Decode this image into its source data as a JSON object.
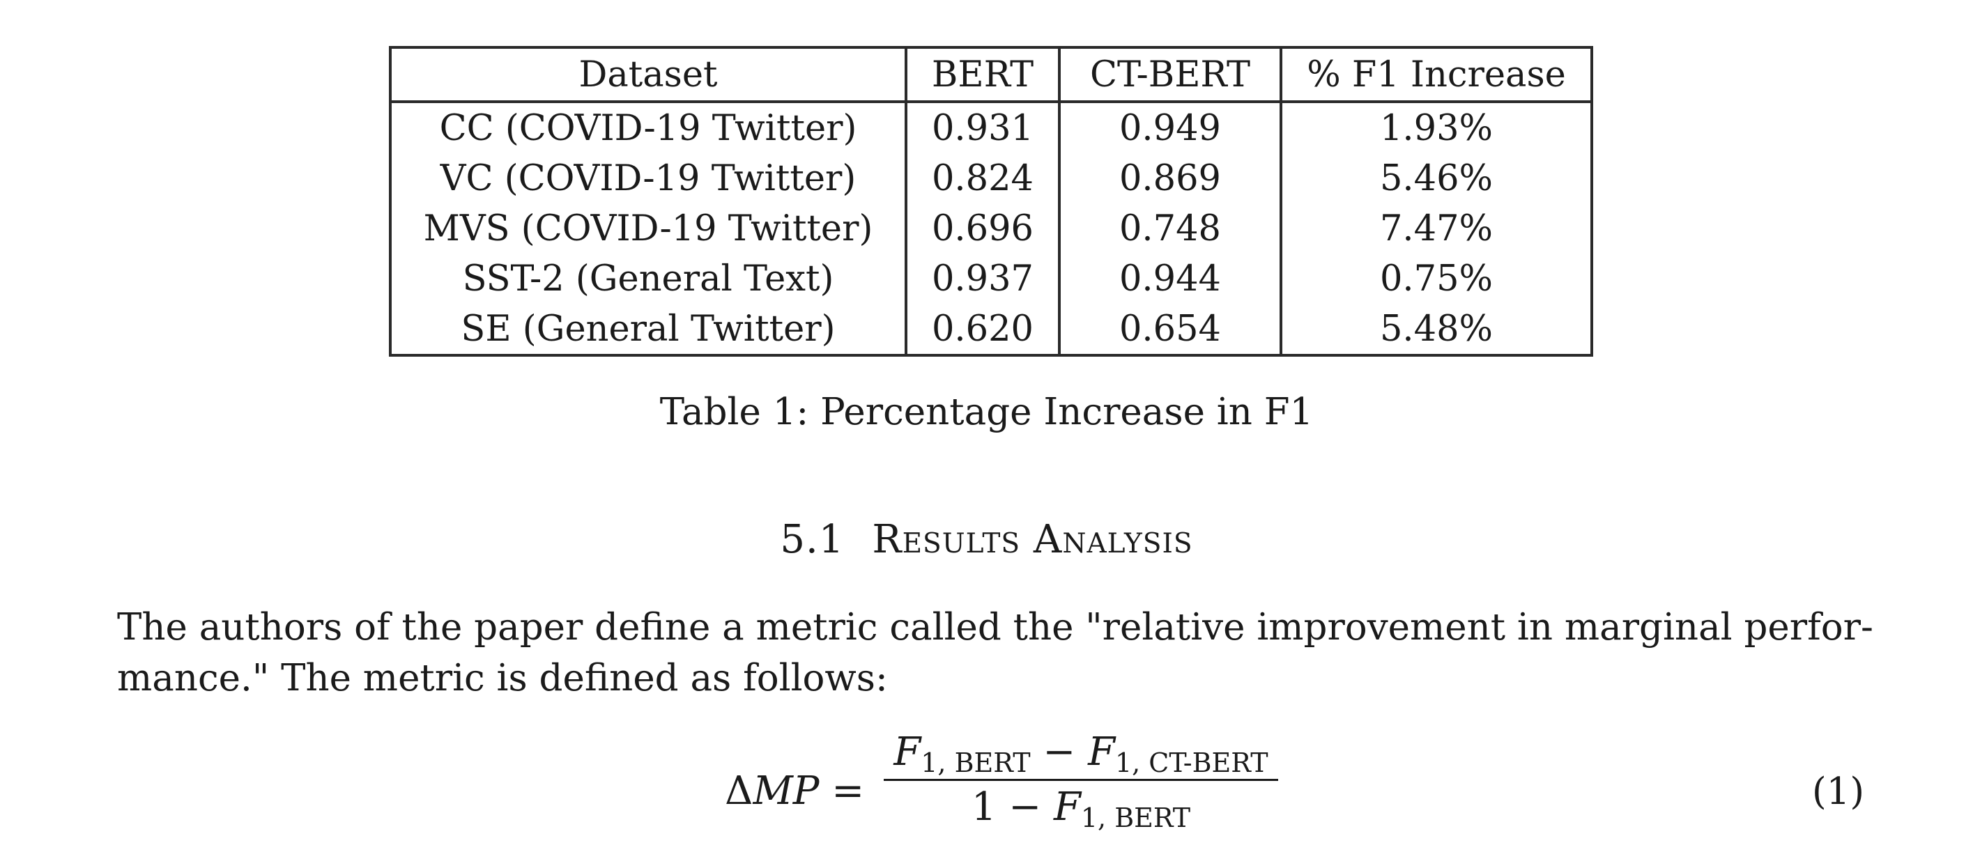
{
  "table": {
    "headers": [
      "Dataset",
      "BERT",
      "CT-BERT",
      "% F1 Increase"
    ],
    "rows": [
      [
        "CC (COVID-19 Twitter)",
        "0.931",
        "0.949",
        "1.93%"
      ],
      [
        "VC (COVID-19 Twitter)",
        "0.824",
        "0.869",
        "5.46%"
      ],
      [
        "MVS (COVID-19 Twitter)",
        "0.696",
        "0.748",
        "7.47%"
      ],
      [
        "SST-2 (General Text)",
        "0.937",
        "0.944",
        "0.75%"
      ],
      [
        "SE (General Twitter)",
        "0.620",
        "0.654",
        "5.48%"
      ]
    ],
    "caption": "Table 1: Percentage Increase in F1"
  },
  "section": {
    "number": "5.1",
    "title": "Results Analysis"
  },
  "paragraph": {
    "line1": "The authors of the paper define a metric called the \"relative improvement in marginal perfor-",
    "line2": "mance.\" The metric is defined as follows:"
  },
  "equation": {
    "lhs_symbol": "Δ",
    "lhs_var": "MP",
    "equals": "=",
    "numer_f1": "F",
    "numer_sub1": "1, BERT",
    "numer_minus": " − ",
    "numer_f2": "F",
    "numer_sub2": "1, CT-BERT",
    "denom_one": "1 − ",
    "denom_f": "F",
    "denom_sub": "1, BERT",
    "number": "(1)"
  }
}
